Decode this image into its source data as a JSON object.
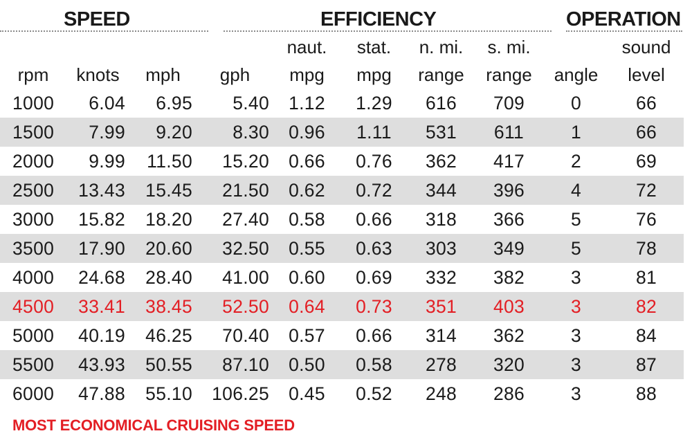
{
  "groups": {
    "speed": "SPEED",
    "efficiency": "EFFICIENCY",
    "operation": "OPERATION"
  },
  "header_top": [
    "",
    "",
    "",
    "",
    "naut.",
    "stat.",
    "n. mi.",
    "s. mi.",
    "",
    "sound"
  ],
  "header_bottom": [
    "rpm",
    "knots",
    "mph",
    "gph",
    "mpg",
    "mpg",
    "range",
    "range",
    "angle",
    "level"
  ],
  "rows": [
    [
      "1000",
      "6.04",
      "6.95",
      "5.40",
      "1.12",
      "1.29",
      "616",
      "709",
      "0",
      "66"
    ],
    [
      "1500",
      "7.99",
      "9.20",
      "8.30",
      "0.96",
      "1.11",
      "531",
      "611",
      "1",
      "66"
    ],
    [
      "2000",
      "9.99",
      "11.50",
      "15.20",
      "0.66",
      "0.76",
      "362",
      "417",
      "2",
      "69"
    ],
    [
      "2500",
      "13.43",
      "15.45",
      "21.50",
      "0.62",
      "0.72",
      "344",
      "396",
      "4",
      "72"
    ],
    [
      "3000",
      "15.82",
      "18.20",
      "27.40",
      "0.58",
      "0.66",
      "318",
      "366",
      "5",
      "76"
    ],
    [
      "3500",
      "17.90",
      "20.60",
      "32.50",
      "0.55",
      "0.63",
      "303",
      "349",
      "5",
      "78"
    ],
    [
      "4000",
      "24.68",
      "28.40",
      "41.00",
      "0.60",
      "0.69",
      "332",
      "382",
      "3",
      "81"
    ],
    [
      "4500",
      "33.41",
      "38.45",
      "52.50",
      "0.64",
      "0.73",
      "351",
      "403",
      "3",
      "82"
    ],
    [
      "5000",
      "40.19",
      "46.25",
      "70.40",
      "0.57",
      "0.66",
      "314",
      "362",
      "3",
      "84"
    ],
    [
      "5500",
      "43.93",
      "50.55",
      "87.10",
      "0.50",
      "0.58",
      "278",
      "320",
      "3",
      "87"
    ],
    [
      "6000",
      "47.88",
      "55.10",
      "106.25",
      "0.45",
      "0.52",
      "248",
      "286",
      "3",
      "88"
    ]
  ],
  "highlight_row": 7,
  "legend": "MOST ECONOMICAL CRUISING SPEED",
  "colors": {
    "highlight": "#e31e24",
    "stripe": "#dedede",
    "text": "#1a1a1a"
  },
  "chart_data": {
    "type": "table",
    "columns": [
      "rpm",
      "knots",
      "mph",
      "gph",
      "naut. mpg",
      "stat. mpg",
      "n. mi. range",
      "s. mi. range",
      "angle",
      "sound level"
    ],
    "rpm": [
      1000,
      1500,
      2000,
      2500,
      3000,
      3500,
      4000,
      4500,
      5000,
      5500,
      6000
    ],
    "knots": [
      6.04,
      7.99,
      9.99,
      13.43,
      15.82,
      17.9,
      24.68,
      33.41,
      40.19,
      43.93,
      47.88
    ],
    "mph": [
      6.95,
      9.2,
      11.5,
      15.45,
      18.2,
      20.6,
      28.4,
      38.45,
      46.25,
      50.55,
      55.1
    ],
    "gph": [
      5.4,
      8.3,
      15.2,
      21.5,
      27.4,
      32.5,
      41.0,
      52.5,
      70.4,
      87.1,
      106.25
    ],
    "naut_mpg": [
      1.12,
      0.96,
      0.66,
      0.62,
      0.58,
      0.55,
      0.6,
      0.64,
      0.57,
      0.5,
      0.45
    ],
    "stat_mpg": [
      1.29,
      1.11,
      0.76,
      0.72,
      0.66,
      0.63,
      0.69,
      0.73,
      0.66,
      0.58,
      0.52
    ],
    "n_mi_range": [
      616,
      531,
      362,
      344,
      318,
      303,
      332,
      351,
      314,
      278,
      248
    ],
    "s_mi_range": [
      709,
      611,
      417,
      396,
      366,
      349,
      382,
      403,
      362,
      320,
      286
    ],
    "angle": [
      0,
      1,
      2,
      4,
      5,
      5,
      3,
      3,
      3,
      3,
      3
    ],
    "sound_level": [
      66,
      66,
      69,
      72,
      76,
      78,
      81,
      82,
      84,
      87,
      88
    ]
  }
}
